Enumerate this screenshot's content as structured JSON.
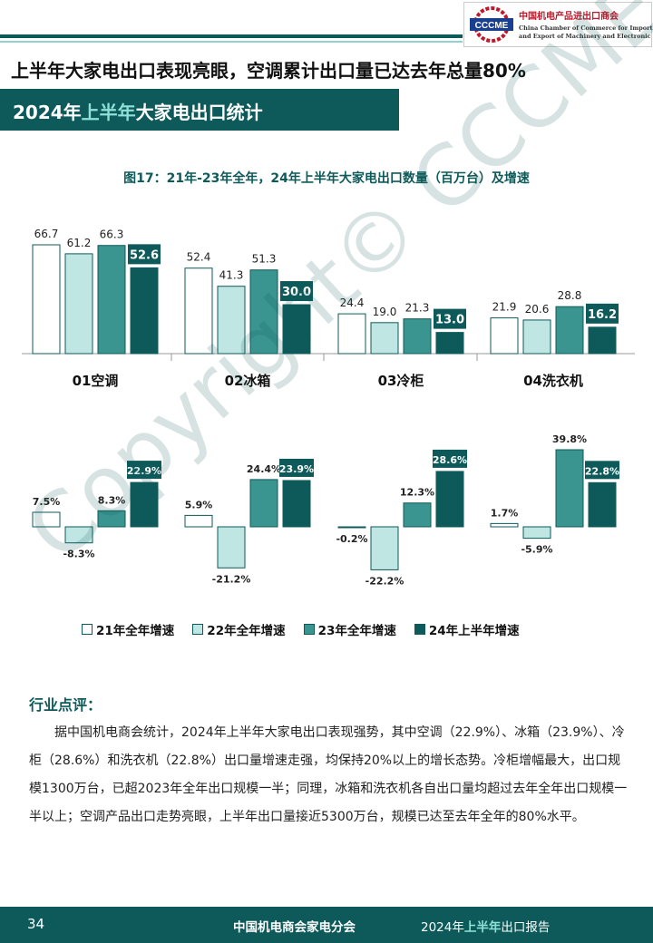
{
  "header": {
    "logo_cn": "中国机电产品进出口商会",
    "logo_en_line1": "China Chamber of Commerce for Import",
    "logo_en_line2": "and Export of Machinery and Electronic Products",
    "logo_abbr": "CCCME"
  },
  "headline": "上半年大家电出口表现亮眼，空调累计出口量已达去年总量80%",
  "section": {
    "title_prefix": "2024年",
    "title_highlight": "上半年",
    "title_suffix": "大家电出口统计"
  },
  "figure_title": "图17：21年-23年全年，24年上半年大家电出口数量（百万台）及增速",
  "colors": {
    "primary": "#0e5a5a",
    "s21": "#ffffff",
    "s22": "#bfe6e3",
    "s23": "#3a9490",
    "s24": "#0e5a5a",
    "highlight": "#8fe0d8"
  },
  "chart_data": [
    {
      "type": "bar",
      "categories": [
        "01空调",
        "02冰箱",
        "03冷柜",
        "04洗衣机"
      ],
      "series": [
        {
          "name": "21年全年增速",
          "values": [
            66.7,
            52.4,
            24.4,
            21.9
          ],
          "labels": [
            "66.7",
            "52.4",
            "24.4",
            "21.9"
          ]
        },
        {
          "name": "22年全年增速",
          "values": [
            61.2,
            41.3,
            19.0,
            20.6
          ],
          "labels": [
            "61.2",
            "41.3",
            "19.0",
            "20.6"
          ]
        },
        {
          "name": "23年全年增速",
          "values": [
            66.3,
            51.3,
            21.3,
            28.8
          ],
          "labels": [
            "66.3",
            "51.3",
            "21.3",
            "28.8"
          ]
        },
        {
          "name": "24年上半年增速",
          "values": [
            52.6,
            30.0,
            13.0,
            16.2
          ],
          "labels": [
            "52.6",
            "30.0",
            "13.0",
            "16.2"
          ]
        }
      ],
      "ylim": [
        0,
        70
      ]
    },
    {
      "type": "bar",
      "categories": [
        "01空调",
        "02冰箱",
        "03冷柜",
        "04洗衣机"
      ],
      "series": [
        {
          "name": "21年全年增速",
          "values": [
            7.5,
            5.9,
            -0.2,
            1.7
          ],
          "labels": [
            "7.5%",
            "5.9%",
            "-0.2%",
            "1.7%"
          ]
        },
        {
          "name": "22年全年增速",
          "values": [
            -8.3,
            -21.2,
            -22.2,
            -5.9
          ],
          "labels": [
            "-8.3%",
            "-21.2%",
            "-22.2%",
            "-5.9%"
          ]
        },
        {
          "name": "23年全年增速",
          "values": [
            8.3,
            24.4,
            12.3,
            39.8
          ],
          "labels": [
            "8.3%",
            "24.4%",
            "12.3%",
            "39.8%"
          ]
        },
        {
          "name": "24年上半年增速",
          "values": [
            22.9,
            23.9,
            28.6,
            22.8
          ],
          "labels": [
            "22.9%",
            "23.9%",
            "28.6%",
            "22.8%"
          ]
        }
      ],
      "ylim": [
        -25,
        42
      ]
    }
  ],
  "legend": [
    "21年全年增速",
    "22年全年增速",
    "23年全年增速",
    "24年上半年增速"
  ],
  "comment": {
    "title": "行业点评：",
    "body": "据中国机电商会统计，2024年上半年大家电出口表现强势，其中空调（22.9%）、冰箱（23.9%）、冷柜（28.6%）和洗衣机（22.8%）出口量增速走强，均保持20%以上的增长态势。冷柜增幅最大，出口规模1300万台，已超2023年全年出口规模一半；同理，冰箱和洗衣机各自出口量均超过去年全年出口规模一半以上；空调产品出口走势亮眼，上半年出口量接近5300万台，规模已达至去年全年的80%水平。"
  },
  "watermark": "Copyright© CCCME",
  "footer": {
    "page": "34",
    "org": "中国机电商会家电分会",
    "report_prefix": "2024年",
    "report_highlight": "上半年",
    "report_suffix": "出口报告"
  }
}
